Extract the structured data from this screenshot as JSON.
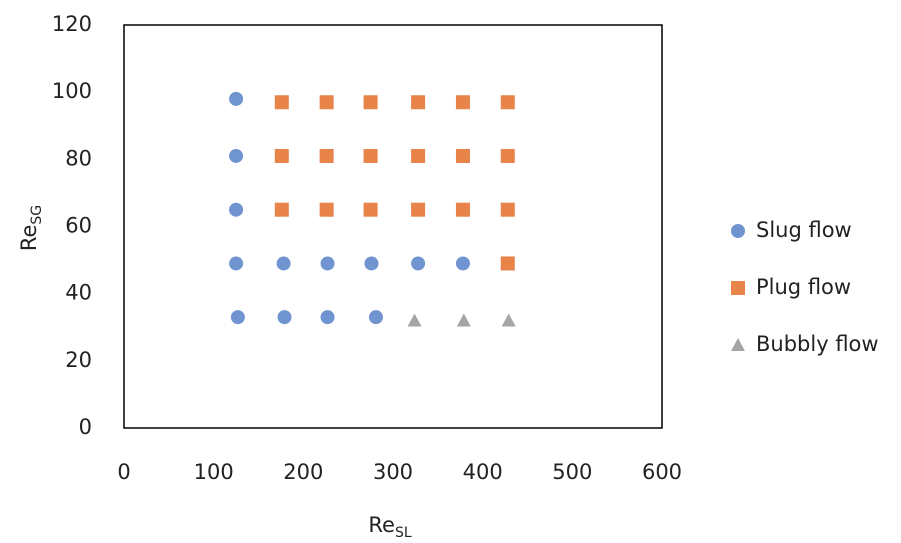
{
  "chart_data": {
    "type": "scatter",
    "xlabel": {
      "text": "Re",
      "sub": "SL"
    },
    "ylabel": {
      "text": "Re",
      "sub": "SG"
    },
    "xlim": [
      0,
      600
    ],
    "xticks": [
      0,
      100,
      200,
      300,
      400,
      500,
      600
    ],
    "ylim": [
      0,
      120
    ],
    "yticks": [
      0,
      20,
      40,
      60,
      80,
      100,
      120
    ],
    "grid": false,
    "legend": "right",
    "series": [
      {
        "name": "Slug flow",
        "color": "#7094cf",
        "marker": "circle",
        "x": [
          125,
          125,
          125,
          125,
          178,
          227,
          276,
          328,
          378,
          127,
          179,
          227,
          281
        ],
        "y": [
          98,
          81,
          65,
          49,
          49,
          49,
          49,
          49,
          49,
          33,
          33,
          33,
          33
        ]
      },
      {
        "name": "Plug flow",
        "color": "#e8834a",
        "marker": "square",
        "x": [
          176,
          226,
          275,
          328,
          378,
          428,
          176,
          226,
          275,
          328,
          378,
          428,
          176,
          226,
          275,
          328,
          378,
          428,
          428
        ],
        "y": [
          97,
          97,
          97,
          97,
          97,
          97,
          81,
          81,
          81,
          81,
          81,
          81,
          65,
          65,
          65,
          65,
          65,
          65,
          49
        ]
      },
      {
        "name": "Bubbly flow",
        "color": "#a5a5a5",
        "marker": "triangle",
        "x": [
          324,
          379,
          429
        ],
        "y": [
          32,
          32,
          32
        ]
      }
    ]
  }
}
